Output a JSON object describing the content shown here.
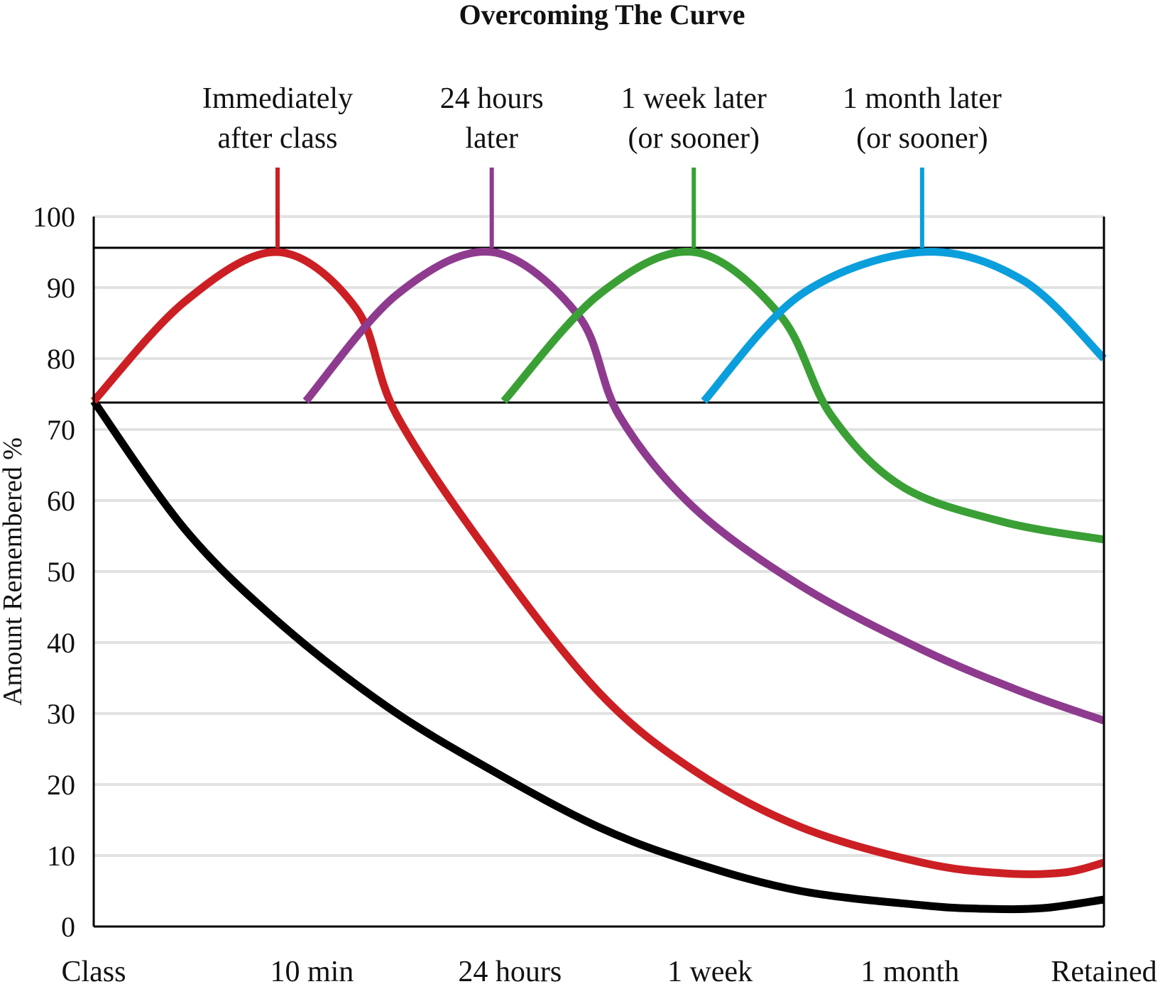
{
  "chart_data": {
    "type": "line",
    "title": "Overcoming The Curve",
    "xlabel": "",
    "ylabel": "Amount Remembered %",
    "ylim": [
      0,
      100
    ],
    "yticks": [
      0,
      10,
      20,
      30,
      40,
      50,
      60,
      70,
      80,
      90,
      100
    ],
    "xlim": [
      0,
      5
    ],
    "x_tick_labels": [
      "Class",
      "10 min",
      "24 hours",
      "1 week",
      "1 month",
      "Retained"
    ],
    "x_tick_positions": [
      0,
      1.08,
      2.06,
      3.05,
      4.04,
      5
    ],
    "grid": true,
    "reference_lines": [
      {
        "y": 95.6
      },
      {
        "y": 73.8
      }
    ],
    "annotations": [
      {
        "lines": [
          "Immediately",
          "after class"
        ],
        "x": 0.91,
        "color": "#cc1f24"
      },
      {
        "lines": [
          "24 hours",
          "later"
        ],
        "x": 1.97,
        "color": "#8e3b8f"
      },
      {
        "lines": [
          "1 week later",
          "(or sooner)"
        ],
        "x": 2.97,
        "color": "#3aa035"
      },
      {
        "lines": [
          "1 month later",
          "(or sooner)"
        ],
        "x": 4.1,
        "color": "#0a9fdc"
      }
    ],
    "series": [
      {
        "color": "#000000",
        "x": [
          0,
          0.45,
          0.91,
          1.45,
          1.97,
          2.5,
          2.97,
          3.5,
          4.1,
          4.4,
          4.7,
          5.0
        ],
        "y": [
          74,
          56,
          43,
          31,
          22,
          14,
          9,
          5,
          3,
          2.5,
          2.6,
          3.8
        ]
      },
      {
        "color": "#cc1f24",
        "x": [
          0,
          0.45,
          0.91,
          1.3,
          1.5,
          1.97,
          2.5,
          2.97,
          3.5,
          4.1,
          4.5,
          4.8,
          5.0
        ],
        "y": [
          74,
          88,
          95,
          87,
          72,
          52,
          33,
          22,
          14,
          9,
          7.5,
          7.6,
          9
        ]
      },
      {
        "color": "#8e3b8f",
        "x": [
          1.05,
          1.5,
          1.97,
          2.4,
          2.6,
          2.97,
          3.5,
          4.1,
          4.6,
          5.0
        ],
        "y": [
          74,
          89,
          95,
          86,
          72,
          59,
          48,
          39,
          33,
          29
        ]
      },
      {
        "color": "#3aa035",
        "x": [
          2.03,
          2.5,
          2.97,
          3.4,
          3.65,
          4.0,
          4.5,
          5.0
        ],
        "y": [
          74,
          89,
          95,
          86,
          72,
          62,
          57,
          54.5
        ]
      },
      {
        "color": "#0a9fdc",
        "x": [
          3.02,
          3.5,
          4.1,
          4.6,
          5.0
        ],
        "y": [
          74,
          89,
          95,
          91,
          80
        ]
      }
    ]
  }
}
